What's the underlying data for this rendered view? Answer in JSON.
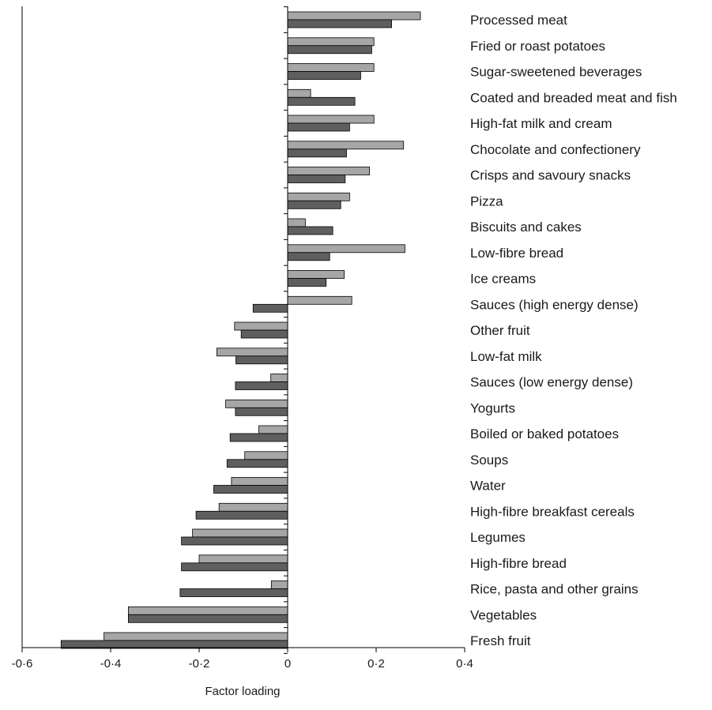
{
  "chart_data": {
    "type": "bar",
    "orientation": "horizontal",
    "title": "",
    "xlabel": "Factor loading",
    "ylabel": "",
    "xlim": [
      -0.6,
      0.4
    ],
    "x_ticks": [
      "-0·6",
      "-0·4",
      "-0·2",
      "0",
      "0·2",
      "0·4"
    ],
    "x_tick_values": [
      -0.6,
      -0.4,
      -0.2,
      0,
      0.2,
      0.4
    ],
    "grid": false,
    "legend": null,
    "colors": {
      "light": "#a6a6a6",
      "dark": "#5f5f5f"
    },
    "categories": [
      "Processed meat",
      "Fried or roast potatoes",
      "Sugar-sweetened beverages",
      "Coated and breaded meat and fish",
      "High-fat milk and cream",
      "Chocolate and confectionery",
      "Crisps and savoury snacks",
      "Pizza",
      "Biscuits and cakes",
      "Low-fibre bread",
      "Ice creams",
      "Sauces (high energy dense)",
      "Other fruit",
      "Low-fat milk",
      "Sauces (low energy dense)",
      "Yogurts",
      "Boiled or baked potatoes",
      "Soups",
      "Water",
      "High-fibre breakfast cereals",
      "Legumes",
      "High-fibre bread",
      "Rice, pasta and other grains",
      "Vegetables",
      "Fresh fruit"
    ],
    "series": [
      {
        "values": [
          0.3,
          0.195,
          0.195,
          0.052,
          0.195,
          0.262,
          0.185,
          0.14,
          0.04,
          0.265,
          0.128,
          0.145,
          -0.12,
          -0.16,
          -0.038,
          -0.14,
          -0.065,
          -0.097,
          -0.127,
          -0.155,
          -0.215,
          -0.2,
          -0.037,
          -0.36,
          -0.415
        ]
      },
      {
        "values": [
          0.235,
          0.19,
          0.165,
          0.152,
          0.14,
          0.133,
          0.13,
          0.12,
          0.102,
          0.095,
          0.087,
          -0.078,
          -0.105,
          -0.117,
          -0.118,
          -0.118,
          -0.13,
          -0.137,
          -0.167,
          -0.207,
          -0.24,
          -0.24,
          -0.243,
          -0.36,
          -0.512
        ]
      }
    ]
  }
}
